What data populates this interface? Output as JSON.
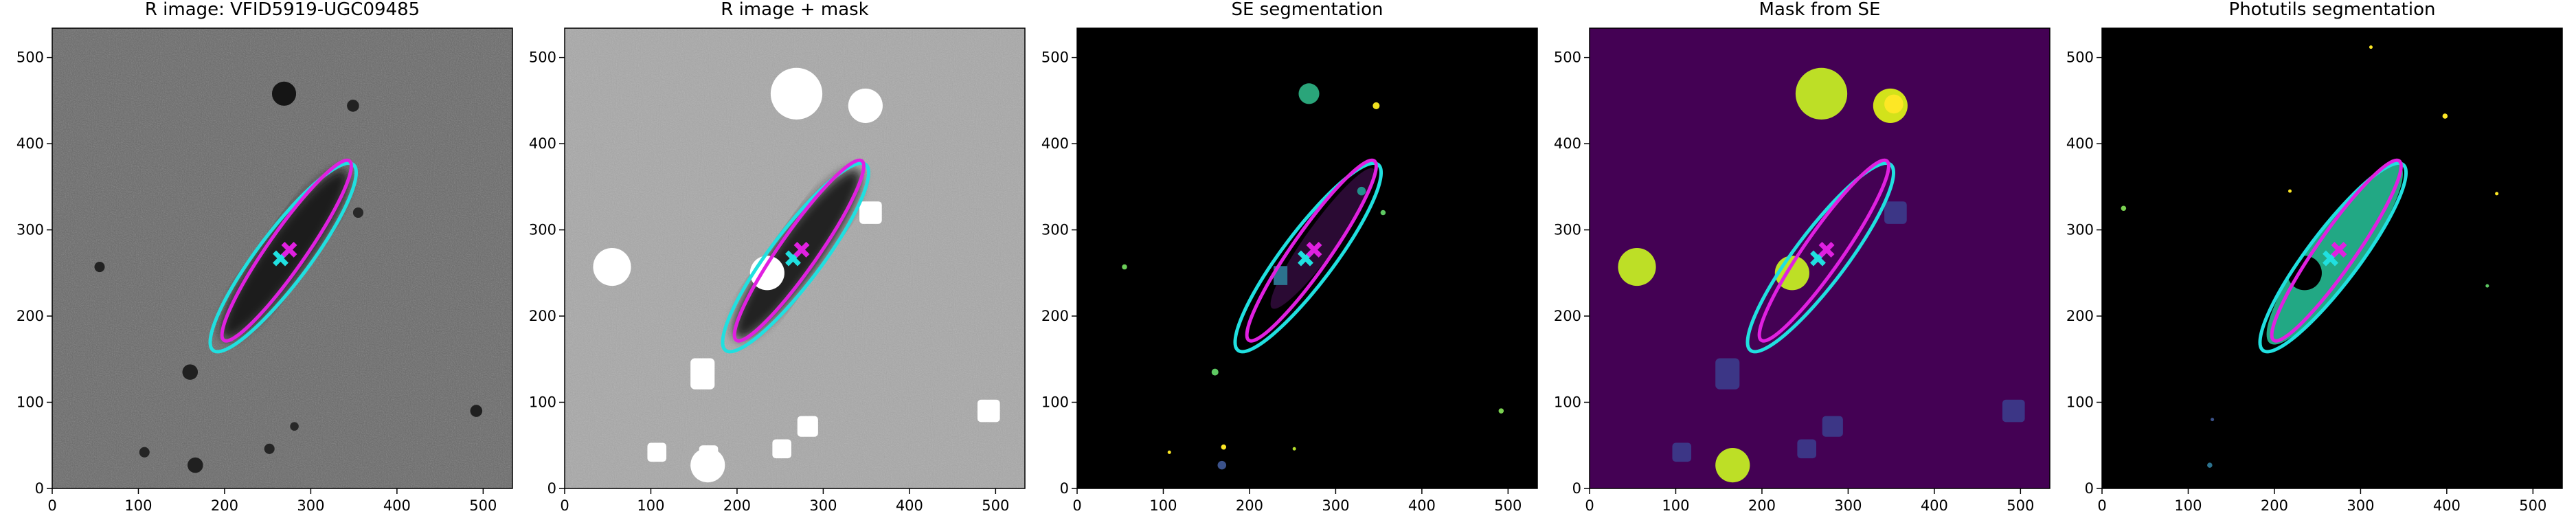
{
  "chart_data": [
    {
      "type": "image",
      "title": "R image: VFID5919-UGC09485",
      "background": "#686868",
      "xlim": [
        0,
        534
      ],
      "ylim": [
        0,
        534
      ],
      "xticks": [
        0,
        100,
        200,
        300,
        400,
        500
      ],
      "yticks": [
        0,
        100,
        200,
        300,
        400,
        500
      ],
      "ellipses": [
        {
          "color": "#20e0e0",
          "center": [
            268,
            268
          ],
          "a": 135,
          "b": 30,
          "angle": 53
        },
        {
          "color": "#e020e0",
          "center": [
            272,
            276
          ],
          "a": 127,
          "b": 22,
          "angle": 55
        }
      ],
      "markers": [
        {
          "color": "#20e0e0",
          "x": 265,
          "y": 267
        },
        {
          "color": "#e020e0",
          "x": 275,
          "y": 277
        }
      ]
    },
    {
      "type": "image",
      "title": "R image + mask",
      "background": "#a8a8a8",
      "xlim": [
        0,
        534
      ],
      "ylim": [
        0,
        534
      ],
      "xticks": [
        0,
        100,
        200,
        300,
        400,
        500
      ],
      "yticks": [
        0,
        100,
        200,
        300,
        400,
        500
      ],
      "ellipses": [
        {
          "color": "#20e0e0",
          "center": [
            268,
            268
          ],
          "a": 135,
          "b": 30,
          "angle": 53
        },
        {
          "color": "#e020e0",
          "center": [
            272,
            276
          ],
          "a": 127,
          "b": 22,
          "angle": 55
        }
      ],
      "markers": [
        {
          "color": "#20e0e0",
          "x": 265,
          "y": 267
        },
        {
          "color": "#e020e0",
          "x": 275,
          "y": 277
        }
      ]
    },
    {
      "type": "image",
      "title": "SE segmentation",
      "background": "#000000",
      "xlim": [
        0,
        534
      ],
      "ylim": [
        0,
        534
      ],
      "xticks": [
        0,
        100,
        200,
        300,
        400,
        500
      ],
      "yticks": [
        0,
        100,
        200,
        300,
        400,
        500
      ],
      "ellipses": [
        {
          "color": "#20e0e0",
          "center": [
            268,
            268
          ],
          "a": 135,
          "b": 30,
          "angle": 53
        },
        {
          "color": "#e020e0",
          "center": [
            272,
            276
          ],
          "a": 127,
          "b": 22,
          "angle": 55
        }
      ],
      "markers": [
        {
          "color": "#20e0e0",
          "x": 265,
          "y": 267
        },
        {
          "color": "#e020e0",
          "x": 275,
          "y": 277
        }
      ]
    },
    {
      "type": "image",
      "title": "Mask from SE",
      "background": "#440154",
      "xlim": [
        0,
        534
      ],
      "ylim": [
        0,
        534
      ],
      "xticks": [
        0,
        100,
        200,
        300,
        400,
        500
      ],
      "yticks": [
        0,
        100,
        200,
        300,
        400,
        500
      ],
      "ellipses": [
        {
          "color": "#20e0e0",
          "center": [
            268,
            268
          ],
          "a": 135,
          "b": 30,
          "angle": 53
        },
        {
          "color": "#e020e0",
          "center": [
            272,
            276
          ],
          "a": 127,
          "b": 22,
          "angle": 55
        }
      ],
      "markers": [
        {
          "color": "#20e0e0",
          "x": 265,
          "y": 267
        },
        {
          "color": "#e020e0",
          "x": 275,
          "y": 277
        }
      ]
    },
    {
      "type": "image",
      "title": "Photutils segmentation",
      "background": "#000000",
      "xlim": [
        0,
        534
      ],
      "ylim": [
        0,
        534
      ],
      "xticks": [
        0,
        100,
        200,
        300,
        400,
        500
      ],
      "yticks": [
        0,
        100,
        200,
        300,
        400,
        500
      ],
      "ellipses": [
        {
          "color": "#20e0e0",
          "center": [
            268,
            268
          ],
          "a": 135,
          "b": 30,
          "angle": 53
        },
        {
          "color": "#e020e0",
          "center": [
            272,
            276
          ],
          "a": 127,
          "b": 22,
          "angle": 55
        }
      ],
      "markers": [
        {
          "color": "#20e0e0",
          "x": 265,
          "y": 267
        },
        {
          "color": "#e020e0",
          "x": 275,
          "y": 277
        }
      ]
    }
  ]
}
